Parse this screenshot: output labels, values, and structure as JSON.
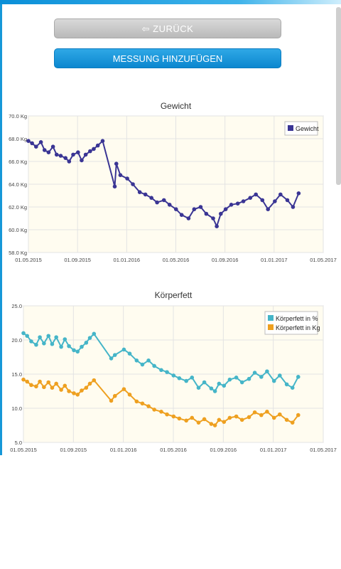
{
  "buttons": {
    "back_label": "⇦ ZURÜCK",
    "add_label": "MESSUNG HINZUFÜGEN"
  },
  "colors": {
    "accent": "#1698d8",
    "weight_series": "#3a3594",
    "fat_pct_series": "#45b5c8",
    "fat_kg_series": "#eea020",
    "plot_bg": "#fffcf0"
  },
  "chart_data": [
    {
      "type": "line",
      "title": "Gewicht",
      "xlabel": "",
      "ylabel": "",
      "x_tick_labels": [
        "01.05.2015",
        "01.09.2015",
        "01.01.2016",
        "01.05.2016",
        "01.09.2016",
        "01.01.2017",
        "01.05.2017"
      ],
      "y_tick_labels": [
        "58.0 Kg",
        "60.0 Kg",
        "62.0 Kg",
        "64.0 Kg",
        "66.0 Kg",
        "68.0 Kg",
        "70.0 Kg"
      ],
      "ylim": [
        58,
        70
      ],
      "xlim": [
        "2015-05-01",
        "2017-05-01"
      ],
      "grid": true,
      "legend": "top-right",
      "series": [
        {
          "name": "Gewicht",
          "color": "#3a3594",
          "points": [
            [
              "2015-05-01",
              67.8
            ],
            [
              "2015-05-10",
              67.6
            ],
            [
              "2015-05-20",
              67.3
            ],
            [
              "2015-06-01",
              67.7
            ],
            [
              "2015-06-10",
              67.0
            ],
            [
              "2015-06-20",
              66.8
            ],
            [
              "2015-07-01",
              67.3
            ],
            [
              "2015-07-10",
              66.6
            ],
            [
              "2015-07-20",
              66.5
            ],
            [
              "2015-08-01",
              66.3
            ],
            [
              "2015-08-10",
              66.0
            ],
            [
              "2015-08-20",
              66.6
            ],
            [
              "2015-09-01",
              66.8
            ],
            [
              "2015-09-10",
              66.1
            ],
            [
              "2015-09-20",
              66.6
            ],
            [
              "2015-10-01",
              66.9
            ],
            [
              "2015-10-10",
              67.1
            ],
            [
              "2015-10-20",
              67.4
            ],
            [
              "2015-11-01",
              67.8
            ],
            [
              "2015-12-01",
              63.8
            ],
            [
              "2015-12-05",
              65.8
            ],
            [
              "2015-12-15",
              64.8
            ],
            [
              "2016-01-01",
              64.5
            ],
            [
              "2016-01-15",
              64.0
            ],
            [
              "2016-02-01",
              63.3
            ],
            [
              "2016-02-15",
              63.1
            ],
            [
              "2016-03-01",
              62.8
            ],
            [
              "2016-03-15",
              62.4
            ],
            [
              "2016-04-01",
              62.6
            ],
            [
              "2016-04-15",
              62.2
            ],
            [
              "2016-05-01",
              61.8
            ],
            [
              "2016-05-15",
              61.3
            ],
            [
              "2016-06-01",
              61.0
            ],
            [
              "2016-06-15",
              61.8
            ],
            [
              "2016-07-01",
              62.0
            ],
            [
              "2016-07-15",
              61.4
            ],
            [
              "2016-08-01",
              61.0
            ],
            [
              "2016-08-10",
              60.3
            ],
            [
              "2016-08-20",
              61.4
            ],
            [
              "2016-09-01",
              61.8
            ],
            [
              "2016-09-15",
              62.2
            ],
            [
              "2016-10-01",
              62.3
            ],
            [
              "2016-10-15",
              62.5
            ],
            [
              "2016-11-01",
              62.8
            ],
            [
              "2016-11-15",
              63.1
            ],
            [
              "2016-12-01",
              62.6
            ],
            [
              "2016-12-15",
              61.8
            ],
            [
              "2017-01-01",
              62.5
            ],
            [
              "2017-01-15",
              63.1
            ],
            [
              "2017-02-01",
              62.6
            ],
            [
              "2017-02-15",
              62.0
            ],
            [
              "2017-03-01",
              63.2
            ]
          ]
        }
      ]
    },
    {
      "type": "line",
      "title": "Körperfett",
      "xlabel": "",
      "ylabel": "",
      "x_tick_labels": [
        "01.05.2015",
        "01.09.2015",
        "01.01.2016",
        "01.05.2016",
        "01.09.2016",
        "01.01.2017",
        "01.05.2017"
      ],
      "y_tick_labels": [
        "5.0",
        "10.0",
        "15.0",
        "20.0",
        "25.0"
      ],
      "ylim": [
        5,
        25
      ],
      "xlim": [
        "2015-05-01",
        "2017-05-01"
      ],
      "grid": true,
      "legend": "top-right",
      "series": [
        {
          "name": "Körperfett in %",
          "color": "#45b5c8",
          "points": [
            [
              "2015-05-01",
              21.0
            ],
            [
              "2015-05-10",
              20.6
            ],
            [
              "2015-05-20",
              19.8
            ],
            [
              "2015-06-01",
              19.3
            ],
            [
              "2015-06-10",
              20.4
            ],
            [
              "2015-06-20",
              19.5
            ],
            [
              "2015-07-01",
              20.6
            ],
            [
              "2015-07-10",
              19.4
            ],
            [
              "2015-07-20",
              20.4
            ],
            [
              "2015-08-01",
              19.0
            ],
            [
              "2015-08-10",
              20.1
            ],
            [
              "2015-08-20",
              19.1
            ],
            [
              "2015-09-01",
              18.5
            ],
            [
              "2015-09-10",
              18.3
            ],
            [
              "2015-09-20",
              19.0
            ],
            [
              "2015-10-01",
              19.6
            ],
            [
              "2015-10-10",
              20.3
            ],
            [
              "2015-10-20",
              20.9
            ],
            [
              "2015-12-01",
              17.3
            ],
            [
              "2015-12-10",
              17.8
            ],
            [
              "2016-01-01",
              18.6
            ],
            [
              "2016-01-15",
              18.0
            ],
            [
              "2016-02-01",
              17.0
            ],
            [
              "2016-02-15",
              16.4
            ],
            [
              "2016-03-01",
              17.0
            ],
            [
              "2016-03-15",
              16.2
            ],
            [
              "2016-04-01",
              15.6
            ],
            [
              "2016-04-15",
              15.3
            ],
            [
              "2016-05-01",
              14.8
            ],
            [
              "2016-05-15",
              14.4
            ],
            [
              "2016-06-01",
              14.0
            ],
            [
              "2016-06-15",
              14.5
            ],
            [
              "2016-07-01",
              13.0
            ],
            [
              "2016-07-15",
              13.8
            ],
            [
              "2016-08-01",
              12.9
            ],
            [
              "2016-08-10",
              12.5
            ],
            [
              "2016-08-20",
              13.6
            ],
            [
              "2016-09-01",
              13.3
            ],
            [
              "2016-09-15",
              14.2
            ],
            [
              "2016-10-01",
              14.5
            ],
            [
              "2016-10-15",
              13.8
            ],
            [
              "2016-11-01",
              14.3
            ],
            [
              "2016-11-15",
              15.2
            ],
            [
              "2016-12-01",
              14.6
            ],
            [
              "2016-12-15",
              15.4
            ],
            [
              "2017-01-01",
              14.0
            ],
            [
              "2017-01-15",
              14.8
            ],
            [
              "2017-02-01",
              13.5
            ],
            [
              "2017-02-15",
              13.0
            ],
            [
              "2017-03-01",
              14.6
            ]
          ]
        },
        {
          "name": "Körperfett in Kg",
          "color": "#eea020",
          "points": [
            [
              "2015-05-01",
              14.2
            ],
            [
              "2015-05-10",
              13.9
            ],
            [
              "2015-05-20",
              13.4
            ],
            [
              "2015-06-01",
              13.2
            ],
            [
              "2015-06-10",
              13.9
            ],
            [
              "2015-06-20",
              13.1
            ],
            [
              "2015-07-01",
              13.8
            ],
            [
              "2015-07-10",
              13.0
            ],
            [
              "2015-07-20",
              13.6
            ],
            [
              "2015-08-01",
              12.7
            ],
            [
              "2015-08-10",
              13.3
            ],
            [
              "2015-08-20",
              12.5
            ],
            [
              "2015-09-01",
              12.2
            ],
            [
              "2015-09-10",
              12.0
            ],
            [
              "2015-09-20",
              12.6
            ],
            [
              "2015-10-01",
              13.0
            ],
            [
              "2015-10-10",
              13.6
            ],
            [
              "2015-10-20",
              14.1
            ],
            [
              "2015-12-01",
              11.1
            ],
            [
              "2015-12-10",
              11.8
            ],
            [
              "2016-01-01",
              12.8
            ],
            [
              "2016-01-15",
              12.0
            ],
            [
              "2016-02-01",
              11.0
            ],
            [
              "2016-02-15",
              10.7
            ],
            [
              "2016-03-01",
              10.3
            ],
            [
              "2016-03-15",
              9.8
            ],
            [
              "2016-04-01",
              9.5
            ],
            [
              "2016-04-15",
              9.1
            ],
            [
              "2016-05-01",
              8.8
            ],
            [
              "2016-05-15",
              8.5
            ],
            [
              "2016-06-01",
              8.2
            ],
            [
              "2016-06-15",
              8.6
            ],
            [
              "2016-07-01",
              7.9
            ],
            [
              "2016-07-15",
              8.4
            ],
            [
              "2016-08-01",
              7.7
            ],
            [
              "2016-08-10",
              7.5
            ],
            [
              "2016-08-20",
              8.3
            ],
            [
              "2016-09-01",
              8.0
            ],
            [
              "2016-09-15",
              8.6
            ],
            [
              "2016-10-01",
              8.8
            ],
            [
              "2016-10-15",
              8.3
            ],
            [
              "2016-11-01",
              8.7
            ],
            [
              "2016-11-15",
              9.4
            ],
            [
              "2016-12-01",
              9.0
            ],
            [
              "2016-12-15",
              9.5
            ],
            [
              "2017-01-01",
              8.6
            ],
            [
              "2017-01-15",
              9.1
            ],
            [
              "2017-02-01",
              8.3
            ],
            [
              "2017-02-15",
              7.9
            ],
            [
              "2017-03-01",
              9.0
            ]
          ]
        }
      ]
    }
  ]
}
